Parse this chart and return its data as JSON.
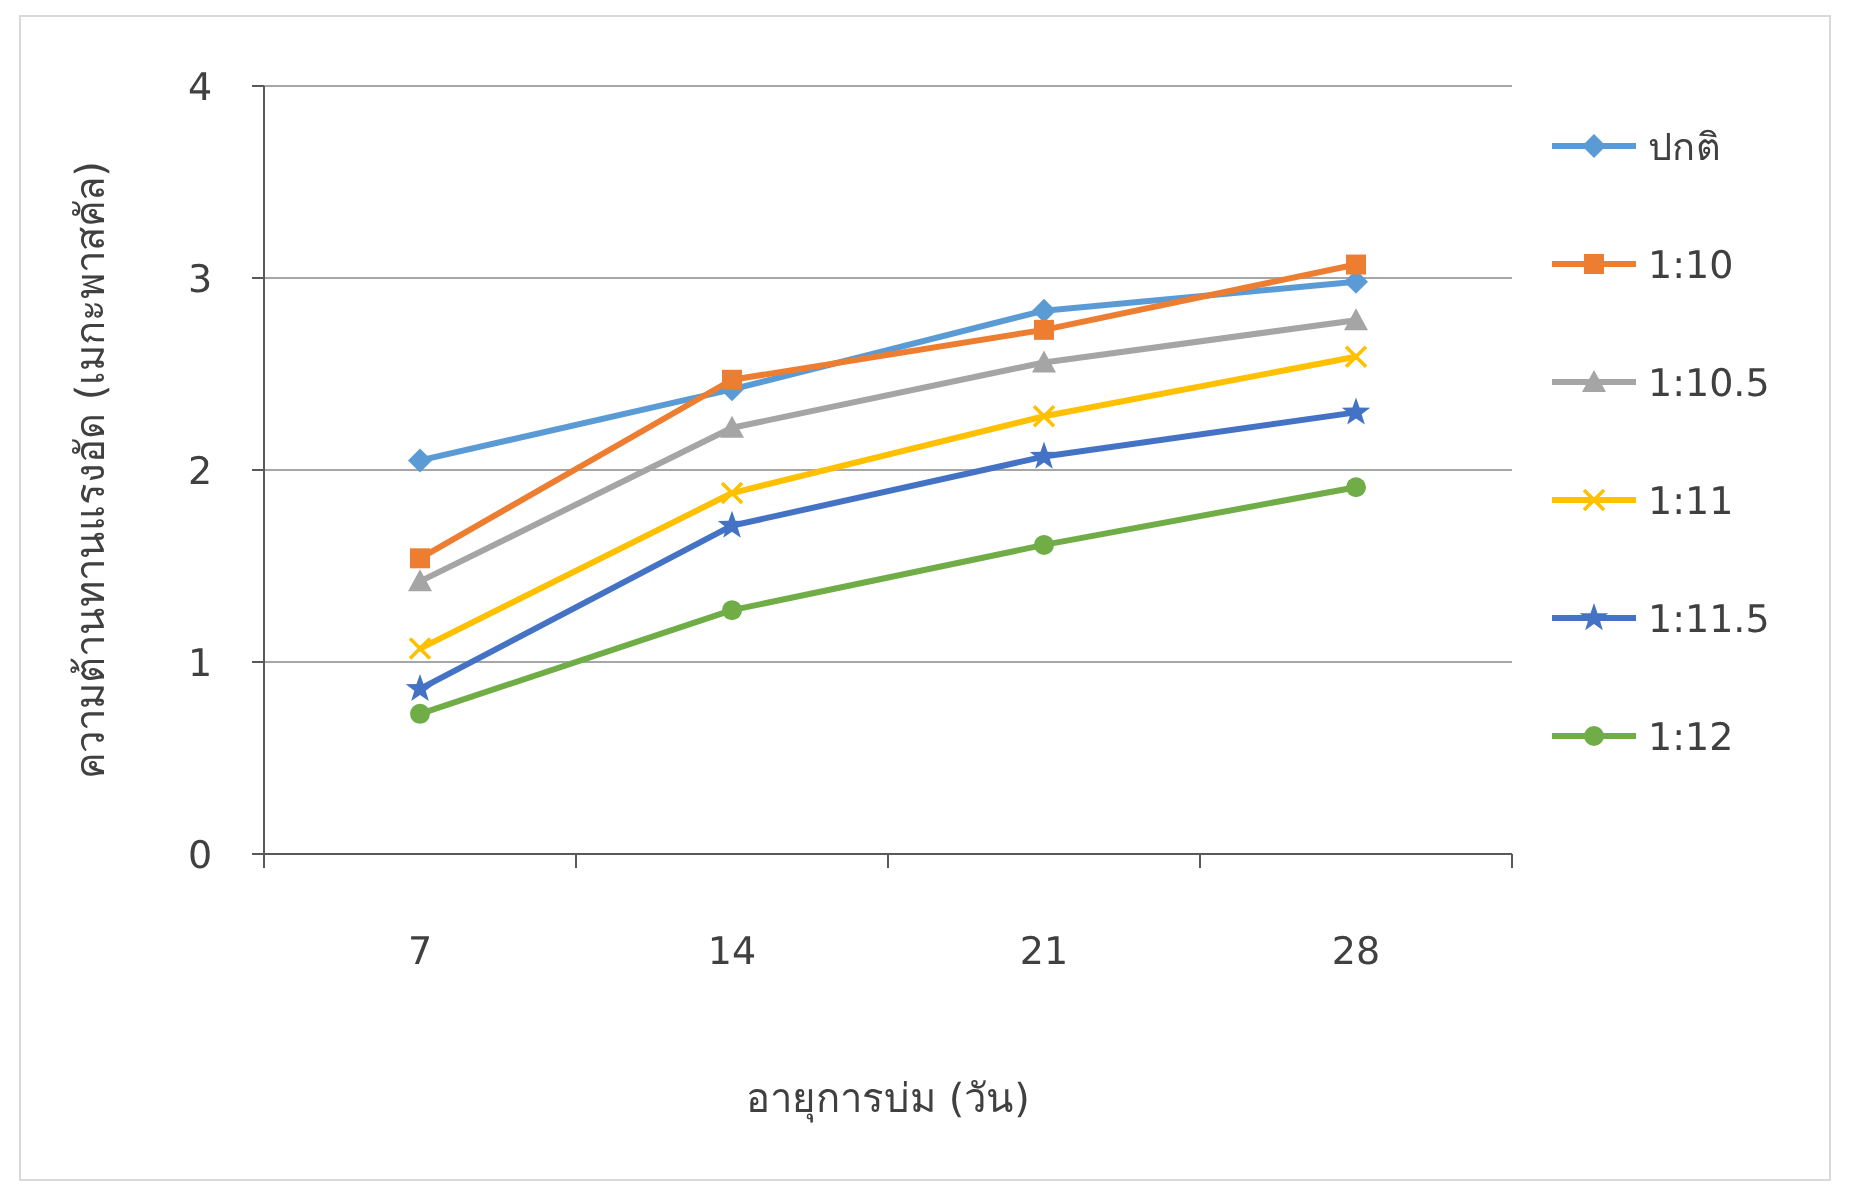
{
  "chart_data": {
    "type": "line",
    "xlabel": "อายุการบ่ม (วัน)",
    "ylabel": "ความต้านทานแรงอัด (เมกะพาสคัล)",
    "categories": [
      "7",
      "14",
      "21",
      "28"
    ],
    "ylim": [
      0,
      4
    ],
    "yticks": [
      0,
      1,
      2,
      3,
      4
    ],
    "grid": "y",
    "legend": "right",
    "line_style": "solid",
    "series": [
      {
        "name": "ปกติ",
        "color": "#5b9bd5",
        "marker": "diamond",
        "values": [
          2.05,
          2.42,
          2.83,
          2.98
        ]
      },
      {
        "name": "1:10",
        "color": "#ed7d31",
        "marker": "square",
        "values": [
          1.54,
          2.47,
          2.73,
          3.07
        ]
      },
      {
        "name": "1:10.5",
        "color": "#a5a5a5",
        "marker": "triangle",
        "values": [
          1.42,
          2.22,
          2.56,
          2.78
        ]
      },
      {
        "name": "1:11",
        "color": "#ffc000",
        "marker": "cross",
        "values": [
          1.07,
          1.88,
          2.28,
          2.59
        ]
      },
      {
        "name": "1:11.5",
        "color": "#4472c4",
        "marker": "star",
        "values": [
          0.86,
          1.71,
          2.07,
          2.3
        ]
      },
      {
        "name": "1:12",
        "color": "#70ad47",
        "marker": "circle",
        "values": [
          0.73,
          1.27,
          1.61,
          1.91
        ]
      }
    ]
  }
}
